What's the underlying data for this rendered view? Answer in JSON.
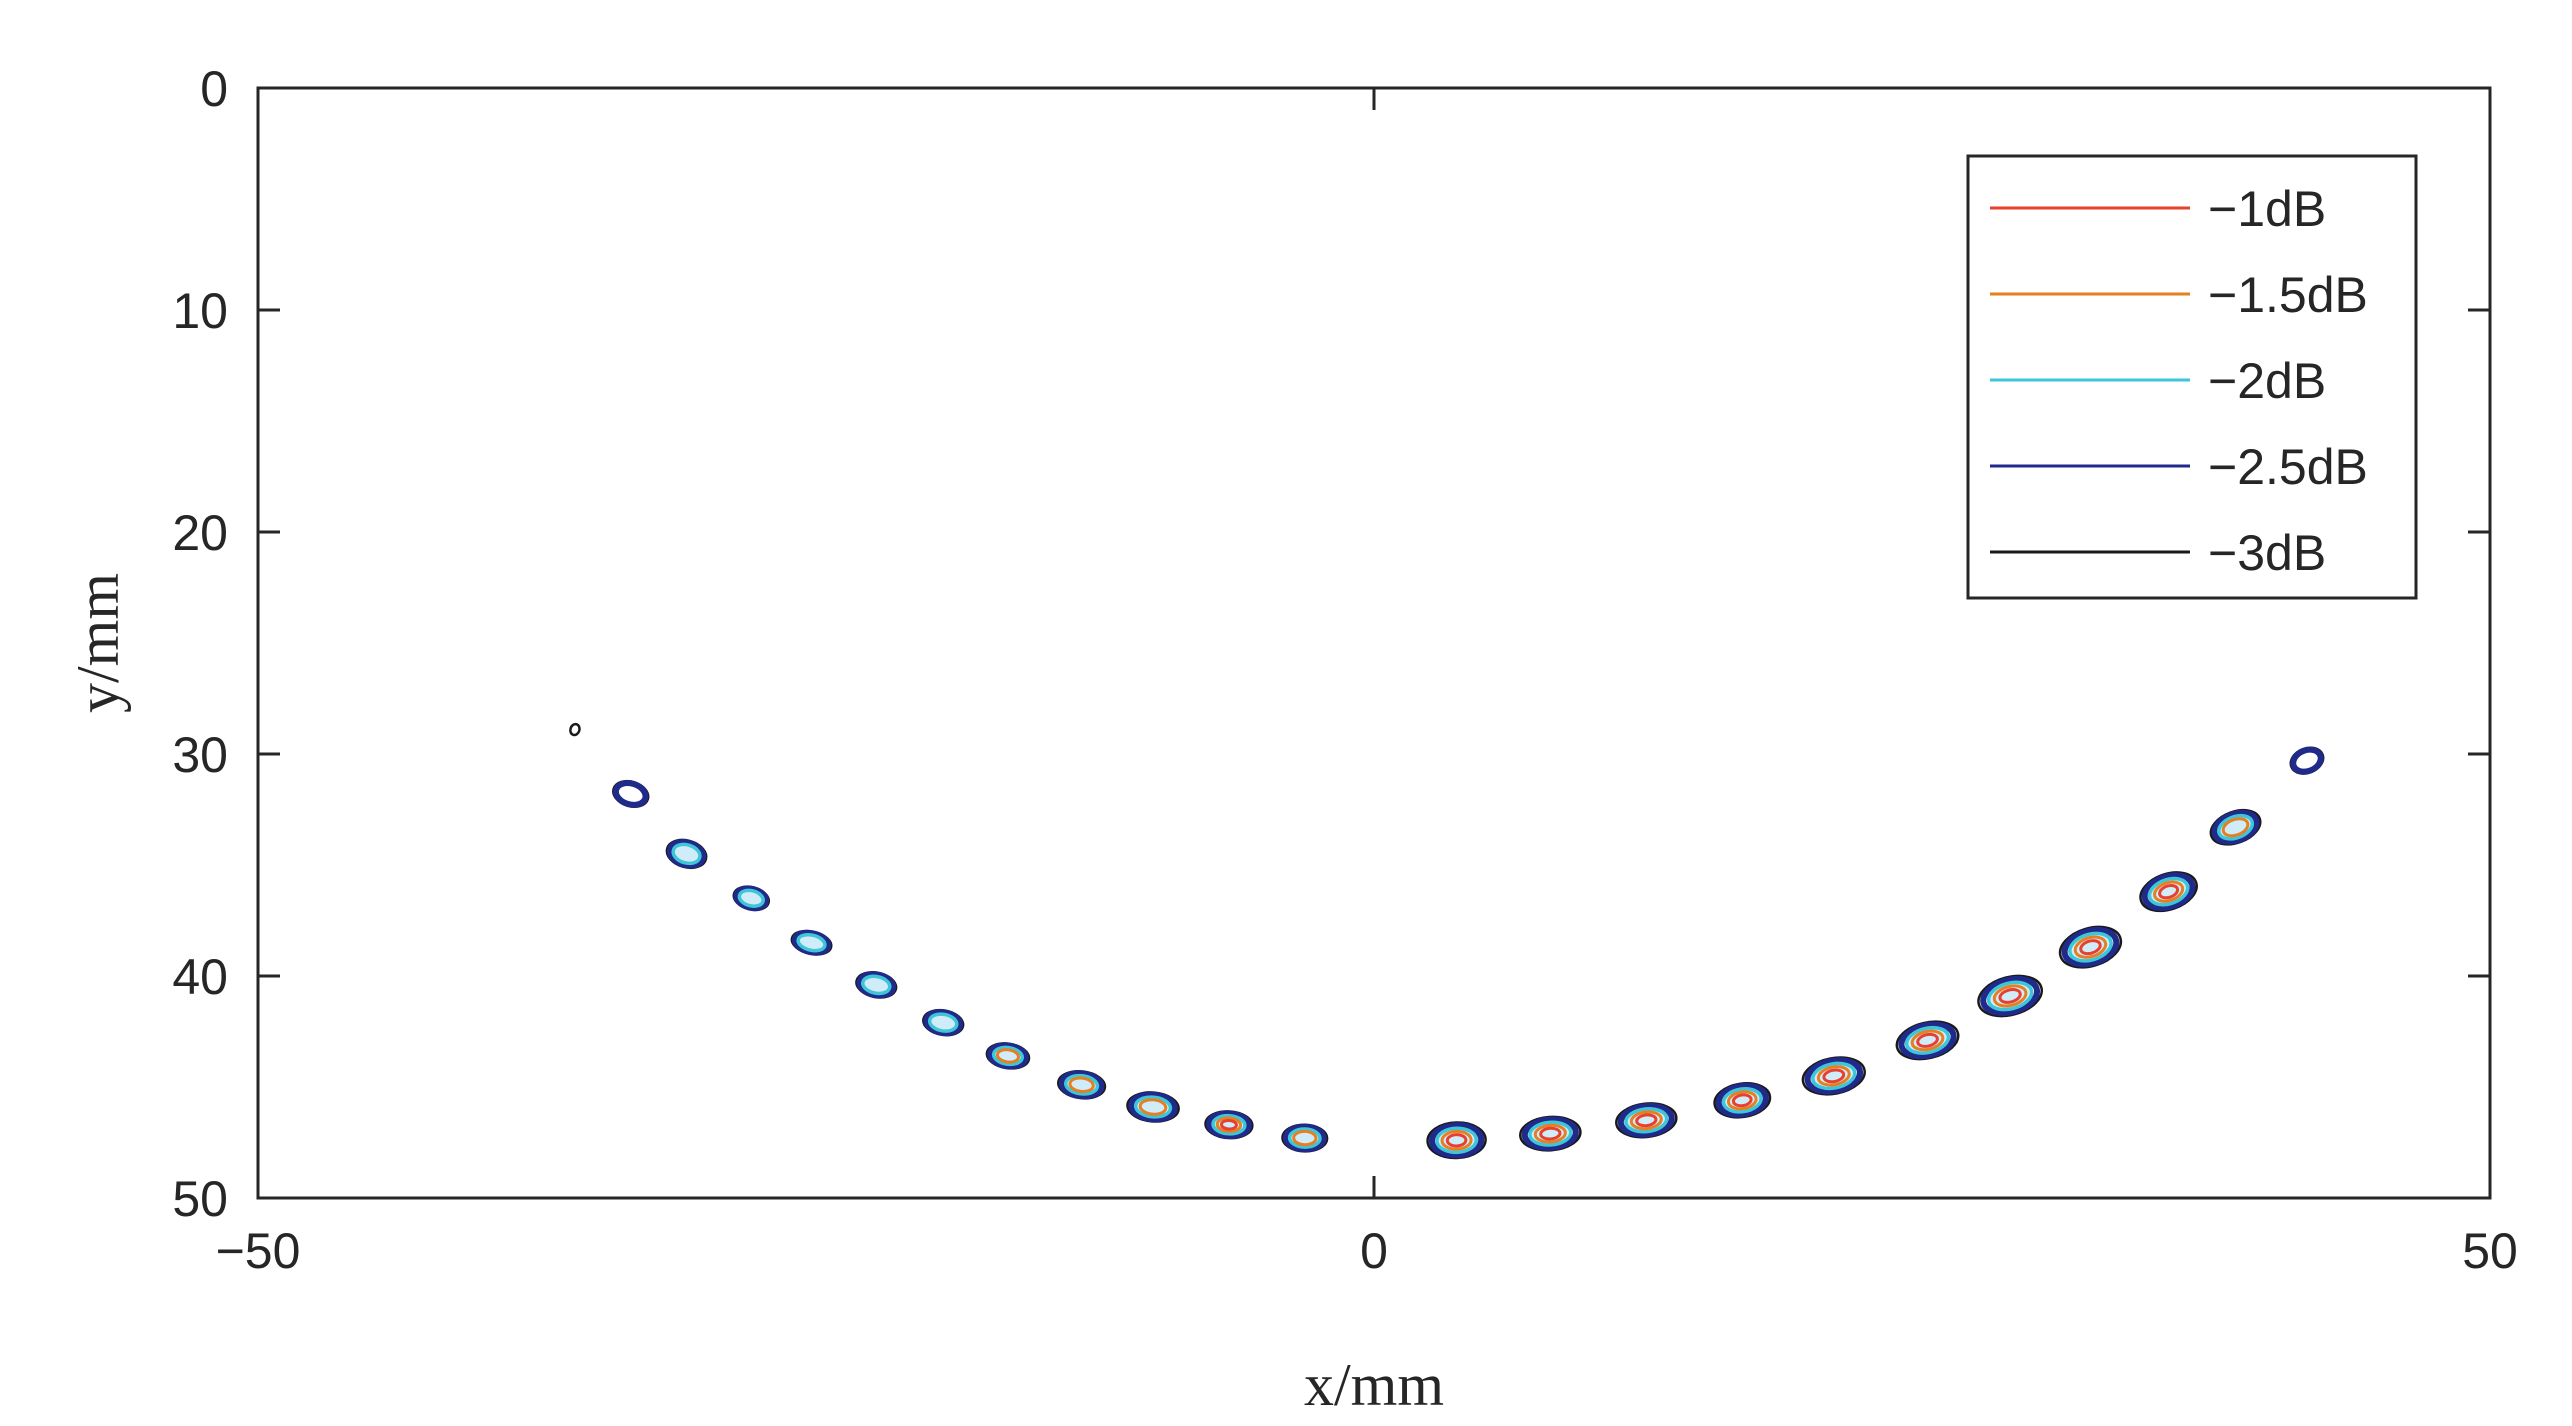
{
  "chart_data": {
    "type": "contour",
    "xlabel": "x/mm",
    "ylabel": "y/mm",
    "xlim": [
      -50,
      50
    ],
    "ylim": [
      0,
      50
    ],
    "y_reversed": true,
    "x_ticks": [
      "−50",
      "0",
      "50"
    ],
    "x_tick_values": [
      -50,
      0,
      50
    ],
    "y_ticks": [
      "0",
      "10",
      "20",
      "30",
      "40",
      "50"
    ],
    "y_tick_values": [
      0,
      10,
      20,
      30,
      40,
      50
    ],
    "grid": false,
    "legend_position": "top-right",
    "levels": [
      {
        "name": "−1dB",
        "color": "#e8402f"
      },
      {
        "name": "−1.5dB",
        "color": "#e67e22"
      },
      {
        "name": "−2dB",
        "color": "#3ec6d8"
      },
      {
        "name": "−2.5dB",
        "color": "#1f2a8a"
      },
      {
        "name": "−3dB",
        "color": "#1a1a1a"
      }
    ],
    "spots": [
      {
        "x": -35.8,
        "y": 28.9,
        "rx": 0.2,
        "ry": 0.25,
        "levels": 1
      },
      {
        "x": -33.3,
        "y": 31.8,
        "rx": 0.8,
        "ry": 0.55,
        "levels": 2
      },
      {
        "x": -30.8,
        "y": 34.5,
        "rx": 0.9,
        "ry": 0.6,
        "levels": 3
      },
      {
        "x": -27.9,
        "y": 36.5,
        "rx": 0.8,
        "ry": 0.5,
        "levels": 3
      },
      {
        "x": -25.2,
        "y": 38.5,
        "rx": 0.9,
        "ry": 0.5,
        "levels": 3
      },
      {
        "x": -22.3,
        "y": 40.4,
        "rx": 0.9,
        "ry": 0.55,
        "levels": 3
      },
      {
        "x": -19.3,
        "y": 42.1,
        "rx": 0.9,
        "ry": 0.55,
        "levels": 3
      },
      {
        "x": -16.4,
        "y": 43.6,
        "rx": 0.95,
        "ry": 0.55,
        "levels": 4
      },
      {
        "x": -13.1,
        "y": 44.9,
        "rx": 1.05,
        "ry": 0.6,
        "levels": 4
      },
      {
        "x": -9.9,
        "y": 45.9,
        "rx": 1.15,
        "ry": 0.65,
        "levels": 4
      },
      {
        "x": -6.5,
        "y": 46.7,
        "rx": 1.05,
        "ry": 0.6,
        "levels": 5
      },
      {
        "x": -3.1,
        "y": 47.3,
        "rx": 1.0,
        "ry": 0.6,
        "levels": 4
      },
      {
        "x": 3.7,
        "y": 47.4,
        "rx": 1.3,
        "ry": 0.8,
        "levels": 5
      },
      {
        "x": 7.9,
        "y": 47.1,
        "rx": 1.35,
        "ry": 0.75,
        "levels": 5
      },
      {
        "x": 12.2,
        "y": 46.5,
        "rx": 1.35,
        "ry": 0.75,
        "levels": 5
      },
      {
        "x": 16.5,
        "y": 45.6,
        "rx": 1.25,
        "ry": 0.75,
        "levels": 5
      },
      {
        "x": 20.6,
        "y": 44.5,
        "rx": 1.4,
        "ry": 0.8,
        "levels": 5
      },
      {
        "x": 24.8,
        "y": 42.9,
        "rx": 1.4,
        "ry": 0.8,
        "levels": 5
      },
      {
        "x": 28.5,
        "y": 40.9,
        "rx": 1.45,
        "ry": 0.85,
        "levels": 5
      },
      {
        "x": 32.1,
        "y": 38.7,
        "rx": 1.4,
        "ry": 0.85,
        "levels": 5
      },
      {
        "x": 35.6,
        "y": 36.2,
        "rx": 1.3,
        "ry": 0.8,
        "levels": 5
      },
      {
        "x": 38.6,
        "y": 33.3,
        "rx": 1.15,
        "ry": 0.7,
        "levels": 4
      },
      {
        "x": 41.8,
        "y": 30.3,
        "rx": 0.75,
        "ry": 0.55,
        "levels": 2
      }
    ]
  }
}
